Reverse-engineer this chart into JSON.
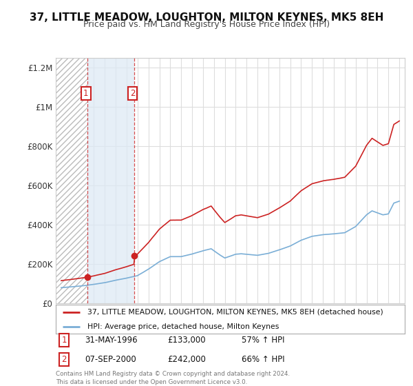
{
  "title": "37, LITTLE MEADOW, LOUGHTON, MILTON KEYNES, MK5 8EH",
  "subtitle": "Price paid vs. HM Land Registry's House Price Index (HPI)",
  "background_color": "#ffffff",
  "plot_bg_color": "#ffffff",
  "hatch_color": "#cccccc",
  "hatch_region_end": 1996.42,
  "blue_region_start": 1996.42,
  "blue_region_end": 2000.68,
  "purchase1": {
    "date_num": 1996.42,
    "price": 133000
  },
  "purchase2": {
    "date_num": 2000.68,
    "price": 242000
  },
  "legend_line1": "37, LITTLE MEADOW, LOUGHTON, MILTON KEYNES, MK5 8EH (detached house)",
  "legend_line2": "HPI: Average price, detached house, Milton Keynes",
  "footer": "Contains HM Land Registry data © Crown copyright and database right 2024.\nThis data is licensed under the Open Government Licence v3.0.",
  "table": [
    {
      "num": "1",
      "date": "31-MAY-1996",
      "price": "£133,000",
      "change": "57% ↑ HPI"
    },
    {
      "num": "2",
      "date": "07-SEP-2000",
      "price": "£242,000",
      "change": "66% ↑ HPI"
    }
  ],
  "red_color": "#cc2222",
  "blue_color": "#7aaed6",
  "label_box_color": "#cc2222",
  "xmin": 1993.5,
  "xmax": 2025.5,
  "ymin": 0,
  "ymax": 1250000,
  "yticks": [
    0,
    200000,
    400000,
    600000,
    800000,
    1000000,
    1200000
  ],
  "ylabels": [
    "£0",
    "£200K",
    "£400K",
    "£600K",
    "£800K",
    "£1M",
    "£1.2M"
  ],
  "grid_color": "#dddddd",
  "title_fontsize": 11,
  "subtitle_fontsize": 9
}
